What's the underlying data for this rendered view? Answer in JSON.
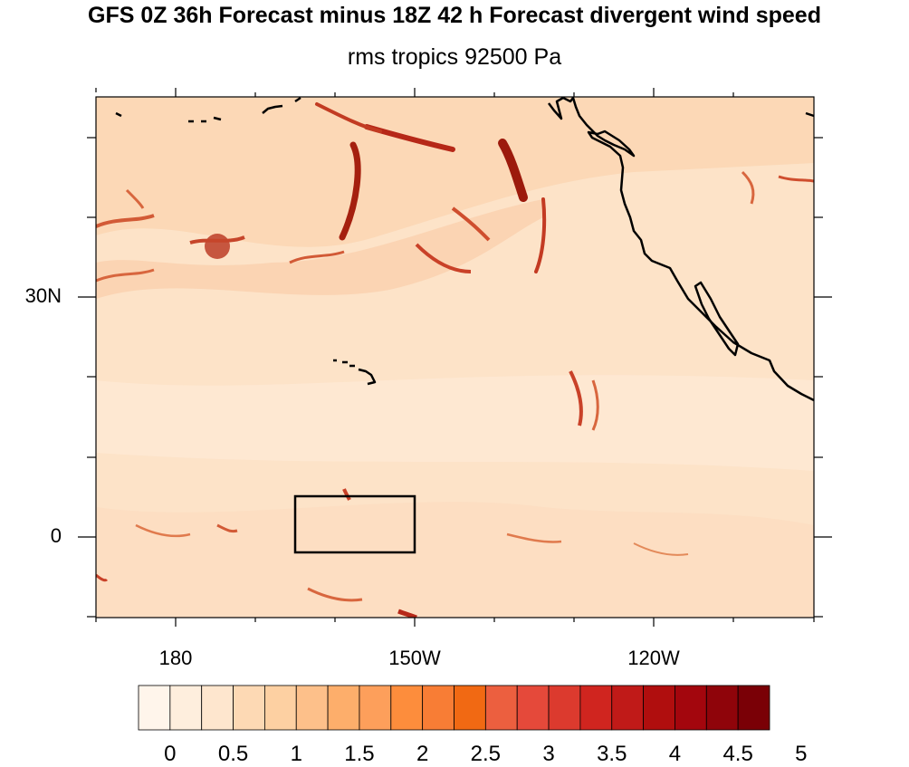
{
  "title": "GFS 0Z 36h Forecast minus 18Z 42 h Forecast divergent wind speed",
  "subtitle": "rms tropics 92500 Pa",
  "lat_labels": [
    "30N",
    "0"
  ],
  "lon_labels": [
    "180",
    "150W",
    "120W"
  ],
  "colorbar": {
    "labels": [
      "0",
      "0.5",
      "1",
      "1.5",
      "2",
      "2.5",
      "3",
      "3.5",
      "4",
      "4.5",
      "5"
    ],
    "colors": [
      "#fff5eb",
      "#feeedd",
      "#fee6ce",
      "#fdd9b4",
      "#fdd0a2",
      "#fdc08a",
      "#fdae6b",
      "#fd9f5b",
      "#fd8d3c",
      "#f87d35",
      "#f16913",
      "#ec5f3f",
      "#e5493a",
      "#dc3a2e",
      "#d0251f",
      "#c01a18",
      "#b00e0e",
      "#a3060d",
      "#8f040a",
      "#7a0006"
    ]
  },
  "box": {
    "lon_min": -165,
    "lon_max": -150,
    "lat_min": -2,
    "lat_max": 5
  }
}
